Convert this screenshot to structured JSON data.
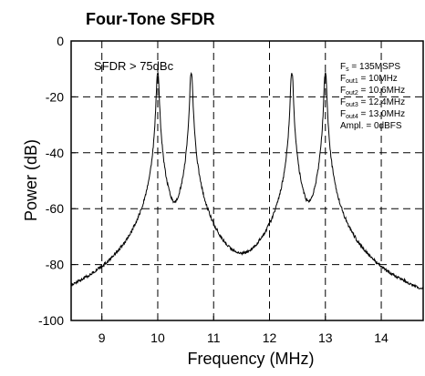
{
  "chart_data": {
    "type": "line",
    "title": "Four-Tone SFDR",
    "xlabel": "Frequency (MHz)",
    "ylabel": "Power (dB)",
    "xlim": [
      8.45,
      14.75
    ],
    "ylim": [
      -100,
      0
    ],
    "x_ticks": [
      "9",
      "10",
      "11",
      "12",
      "13",
      "14"
    ],
    "y_ticks": [
      "0",
      "-20",
      "-40",
      "-60",
      "-80",
      "-100"
    ],
    "grid": true,
    "grid_style": "dashed",
    "annotation": "SFDR > 75dBc",
    "legend_placement": "top-right",
    "legend_lines": [
      {
        "main": "F",
        "sub": "s",
        "rest": " = 135MSPS"
      },
      {
        "main": "F",
        "sub": "out1",
        "rest": " = 10MHz"
      },
      {
        "main": "F",
        "sub": "out2",
        "rest": " = 10.6MHz"
      },
      {
        "main": "F",
        "sub": "out3",
        "rest": " = 12.4MHz"
      },
      {
        "main": "F",
        "sub": "out4",
        "rest": " = 13.0MHz"
      },
      {
        "main": "Ampl. = 0dBFS",
        "sub": "",
        "rest": ""
      }
    ],
    "series": [
      {
        "color": "#000000",
        "noise_floor_db": -96,
        "peaks": [
          {
            "freq": 10.0,
            "power": -11
          },
          {
            "freq": 10.6,
            "power": -11
          },
          {
            "freq": 12.4,
            "power": -11
          },
          {
            "freq": 13.0,
            "power": -11
          }
        ]
      }
    ]
  }
}
